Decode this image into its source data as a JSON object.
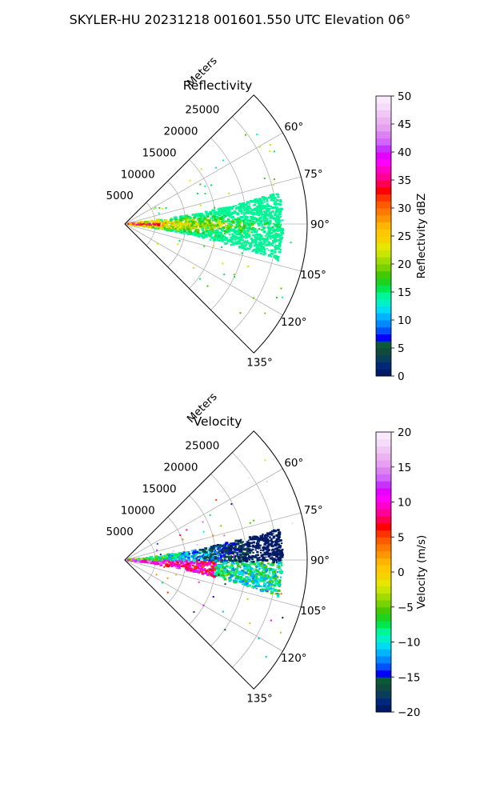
{
  "suptitle": "SKYLER-HU  20231218  001601.550 UTC Elevation 06°",
  "chart_data": [
    {
      "type": "ppi-sector",
      "title": "Reflectivity",
      "range_label": "Meters",
      "range_ticks": [
        5000,
        10000,
        15000,
        20000,
        25000
      ],
      "range_max": 30000,
      "azimuth_range": [
        45,
        135
      ],
      "azimuth_tick_labels": [
        "60°",
        "75°",
        "90°",
        "105°",
        "120°",
        "135°"
      ],
      "grid": true,
      "colorbar": {
        "label": "Reflectivity dBZ",
        "ticks": [
          "0",
          "5",
          "10",
          "15",
          "20",
          "25",
          "30",
          "35",
          "40",
          "45",
          "50"
        ],
        "min": 0,
        "max": 50,
        "colors": [
          "#001a66",
          "#00287a",
          "#0a3d5c",
          "#0f4a3c",
          "#0a5a36",
          "#0000ff",
          "#0050ff",
          "#0088ff",
          "#00b4ff",
          "#00dcf0",
          "#00f0c8",
          "#00f596",
          "#00e650",
          "#1ed21e",
          "#46c800",
          "#78d200",
          "#a0dc00",
          "#c8e600",
          "#e6e600",
          "#f5d200",
          "#ffc800",
          "#ffb400",
          "#ff9600",
          "#ff7800",
          "#ff5a00",
          "#ff3200",
          "#ff0000",
          "#ff0050",
          "#ff0096",
          "#ff00c8",
          "#ff00ff",
          "#e600ff",
          "#c832ff",
          "#d264ff",
          "#dc82f0",
          "#e6a0f0",
          "#ebb4f0",
          "#f0c8f5",
          "#f5dcfa",
          "#fae8fc"
        ]
      }
    },
    {
      "type": "ppi-sector",
      "title": "Velocity",
      "range_label": "Meters",
      "range_ticks": [
        5000,
        10000,
        15000,
        20000,
        25000
      ],
      "range_max": 30000,
      "azimuth_range": [
        45,
        135
      ],
      "azimuth_tick_labels": [
        "60°",
        "75°",
        "90°",
        "105°",
        "120°",
        "135°"
      ],
      "grid": true,
      "colorbar": {
        "label": "Velocity (m/s)",
        "ticks": [
          "−20",
          "−15",
          "−10",
          "−5",
          "0",
          "5",
          "10",
          "15",
          "20"
        ],
        "min": -20,
        "max": 20,
        "colors": [
          "#001a66",
          "#00287a",
          "#0a3d5c",
          "#0f4a3c",
          "#0a5a36",
          "#0000ff",
          "#0050ff",
          "#0088ff",
          "#00b4ff",
          "#00dcf0",
          "#00f0c8",
          "#00f596",
          "#00e650",
          "#1ed21e",
          "#46c800",
          "#78d200",
          "#a0dc00",
          "#c8e600",
          "#e6e600",
          "#f5d200",
          "#ffc800",
          "#ffb400",
          "#ff9600",
          "#ff7800",
          "#ff5a00",
          "#ff3200",
          "#ff0000",
          "#ff0050",
          "#ff0096",
          "#ff00c8",
          "#ff00ff",
          "#e600ff",
          "#c832ff",
          "#d264ff",
          "#dc82f0",
          "#e6a0f0",
          "#ebb4f0",
          "#f0c8f5",
          "#f5dcfa",
          "#fae8fc"
        ]
      }
    }
  ]
}
